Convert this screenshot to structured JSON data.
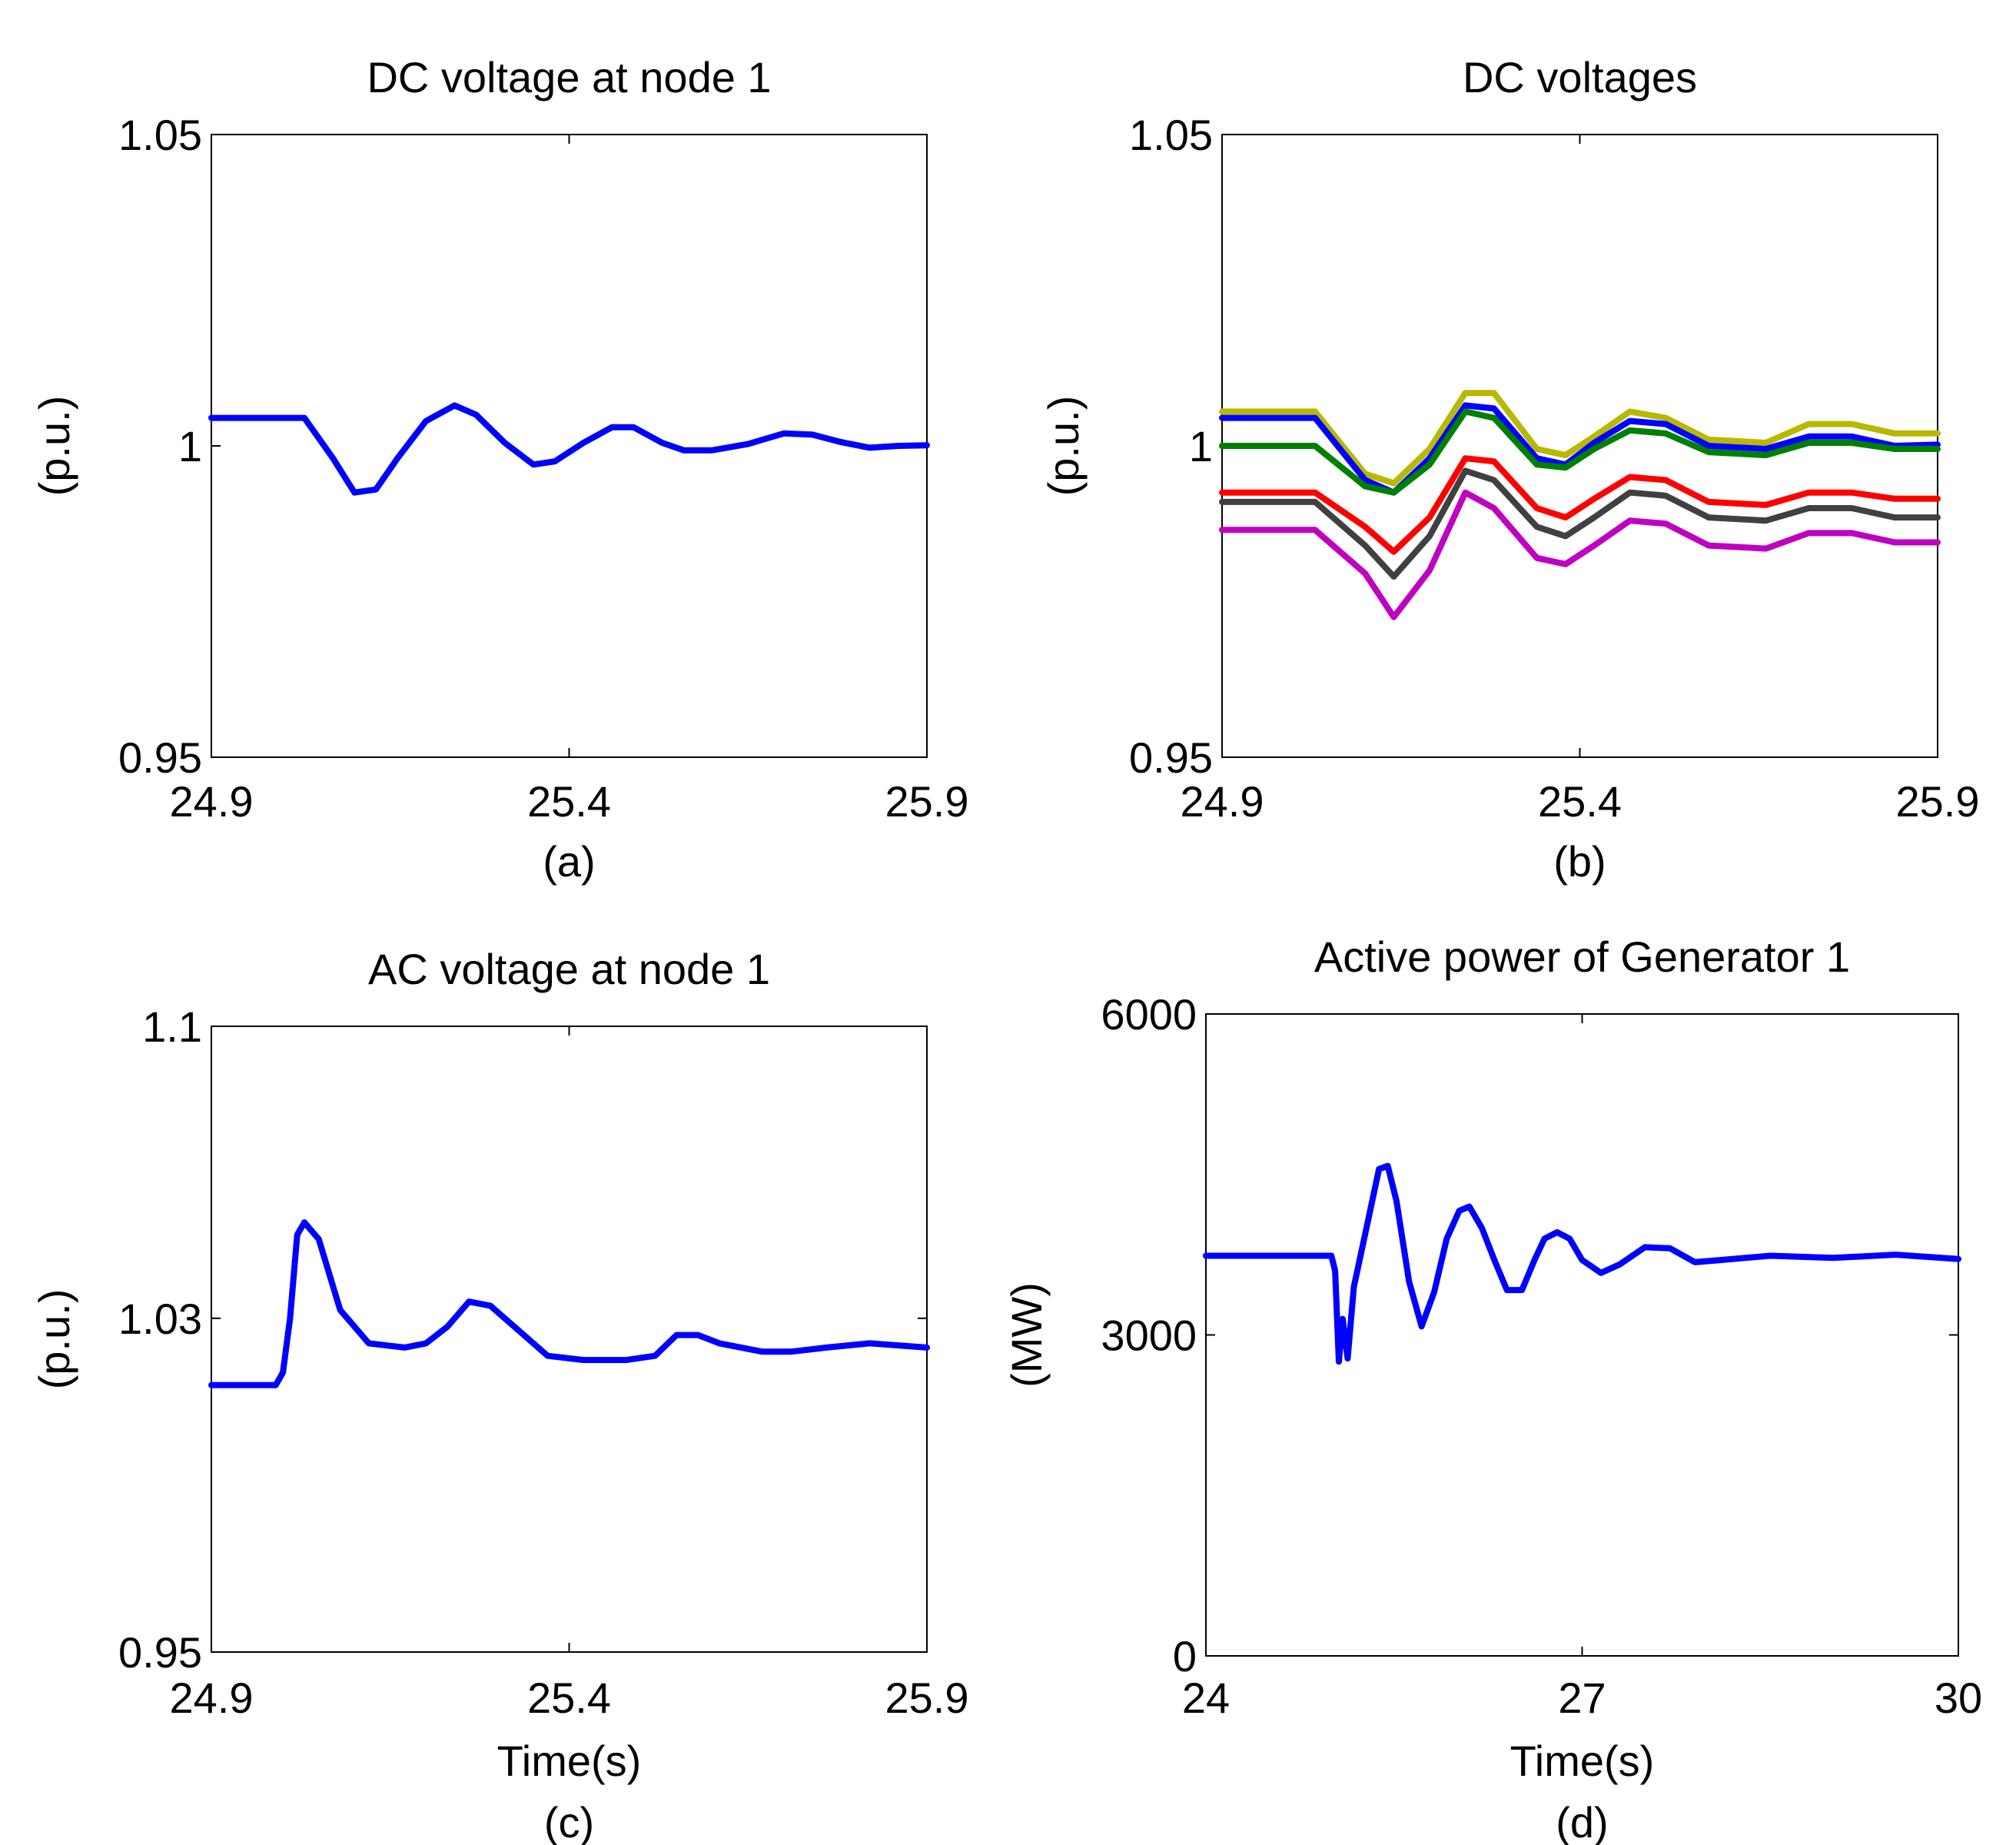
{
  "chart_data": [
    {
      "type": "line",
      "title": "DC voltage at node 1",
      "xlabel": "",
      "ylabel": "(p.u.)",
      "caption": "(a)",
      "xlim": [
        24.9,
        25.9
      ],
      "ylim": [
        0.95,
        1.05
      ],
      "xticks": [
        24.9,
        25.4,
        25.9
      ],
      "xtick_labels": [
        "24.9",
        "25.4",
        "25.9"
      ],
      "yticks": [
        0.95,
        1,
        1.05
      ],
      "ytick_labels": [
        "0.95",
        "1",
        "1.05"
      ],
      "series": [
        {
          "name": "node 1",
          "color": "#0000ff",
          "x": [
            24.9,
            25.03,
            25.07,
            25.1,
            25.13,
            25.16,
            25.2,
            25.24,
            25.27,
            25.31,
            25.35,
            25.38,
            25.42,
            25.46,
            25.49,
            25.53,
            25.56,
            25.6,
            25.65,
            25.7,
            25.74,
            25.78,
            25.82,
            25.86,
            25.9
          ],
          "y": [
            1.0045,
            1.0045,
            0.998,
            0.9925,
            0.993,
            0.998,
            1.004,
            1.0065,
            1.005,
            1.0005,
            0.997,
            0.9975,
            1.0005,
            1.003,
            1.003,
            1.0005,
            0.9993,
            0.9993,
            1.0003,
            1.002,
            1.0018,
            1.0006,
            0.9997,
            1.0,
            1.0001
          ]
        }
      ]
    },
    {
      "type": "line",
      "title": "DC voltages",
      "xlabel": "",
      "ylabel": "(p.u.)",
      "caption": "(b)",
      "xlim": [
        24.9,
        25.9
      ],
      "ylim": [
        0.95,
        1.05
      ],
      "xticks": [
        24.9,
        25.4,
        25.9
      ],
      "xtick_labels": [
        "24.9",
        "25.4",
        "25.9"
      ],
      "yticks": [
        0.95,
        1,
        1.05
      ],
      "ytick_labels": [
        "0.95",
        "1",
        "1.05"
      ],
      "series": [
        {
          "name": "yellow",
          "color": "#b8b800",
          "x": [
            24.9,
            25.03,
            25.1,
            25.14,
            25.19,
            25.24,
            25.28,
            25.34,
            25.38,
            25.42,
            25.47,
            25.52,
            25.58,
            25.66,
            25.72,
            25.78,
            25.84,
            25.9
          ],
          "y": [
            1.0055,
            1.0055,
            0.9955,
            0.994,
            0.9995,
            1.0085,
            1.0085,
            0.9995,
            0.9985,
            1.0015,
            1.0055,
            1.0045,
            1.001,
            1.0005,
            1.0035,
            1.0035,
            1.002,
            1.002
          ]
        },
        {
          "name": "blue",
          "color": "#0000ff",
          "x": [
            24.9,
            25.03,
            25.1,
            25.14,
            25.19,
            25.24,
            25.28,
            25.34,
            25.38,
            25.42,
            25.47,
            25.52,
            25.58,
            25.66,
            25.72,
            25.78,
            25.84,
            25.9
          ],
          "y": [
            1.0045,
            1.0045,
            0.9945,
            0.9925,
            0.998,
            1.0065,
            1.006,
            0.998,
            0.997,
            1.0005,
            1.004,
            1.0035,
            1.0,
            0.9995,
            1.0015,
            1.0015,
            1.0,
            1.0002
          ]
        },
        {
          "name": "green",
          "color": "#008000",
          "x": [
            24.9,
            25.03,
            25.1,
            25.14,
            25.19,
            25.24,
            25.28,
            25.34,
            25.38,
            25.42,
            25.47,
            25.52,
            25.58,
            25.66,
            25.72,
            25.78,
            25.84,
            25.9
          ],
          "y": [
            1.0,
            1.0,
            0.9935,
            0.9925,
            0.997,
            1.0055,
            1.0045,
            0.997,
            0.9965,
            0.9995,
            1.0025,
            1.002,
            0.999,
            0.9985,
            1.0005,
            1.0005,
            0.9995,
            0.9995
          ]
        },
        {
          "name": "red",
          "color": "#ff0000",
          "x": [
            24.9,
            25.03,
            25.1,
            25.14,
            25.19,
            25.24,
            25.28,
            25.34,
            25.38,
            25.42,
            25.47,
            25.52,
            25.58,
            25.66,
            25.72,
            25.78,
            25.84,
            25.9
          ],
          "y": [
            0.9925,
            0.9925,
            0.987,
            0.983,
            0.9885,
            0.998,
            0.9975,
            0.99,
            0.9885,
            0.9915,
            0.995,
            0.9945,
            0.991,
            0.9905,
            0.9925,
            0.9925,
            0.9915,
            0.9915
          ]
        },
        {
          "name": "dark gray",
          "color": "#404040",
          "x": [
            24.9,
            25.03,
            25.1,
            25.14,
            25.19,
            25.24,
            25.28,
            25.34,
            25.38,
            25.42,
            25.47,
            25.52,
            25.58,
            25.66,
            25.72,
            25.78,
            25.84,
            25.9
          ],
          "y": [
            0.991,
            0.991,
            0.984,
            0.979,
            0.9855,
            0.996,
            0.9945,
            0.987,
            0.9855,
            0.9885,
            0.9925,
            0.992,
            0.9885,
            0.988,
            0.99,
            0.99,
            0.9885,
            0.9885
          ]
        },
        {
          "name": "magenta",
          "color": "#c000c0",
          "x": [
            24.9,
            25.03,
            25.1,
            25.14,
            25.19,
            25.24,
            25.28,
            25.34,
            25.38,
            25.42,
            25.47,
            25.52,
            25.58,
            25.66,
            25.72,
            25.78,
            25.84,
            25.9
          ],
          "y": [
            0.9865,
            0.9865,
            0.9795,
            0.9725,
            0.98,
            0.9925,
            0.99,
            0.982,
            0.981,
            0.984,
            0.988,
            0.9875,
            0.984,
            0.9835,
            0.986,
            0.986,
            0.9845,
            0.9845
          ]
        }
      ]
    },
    {
      "type": "line",
      "title": "AC voltage at node 1",
      "xlabel": "Time(s)",
      "ylabel": "(p.u.)",
      "caption": "(c)",
      "xlim": [
        24.9,
        25.9
      ],
      "ylim": [
        0.95,
        1.1
      ],
      "xticks": [
        24.9,
        25.4,
        25.9
      ],
      "xtick_labels": [
        "24.9",
        "25.4",
        "25.9"
      ],
      "yticks": [
        0.95,
        1.03,
        1.1
      ],
      "ytick_labels": [
        "0.95",
        "1.03",
        "1.1"
      ],
      "series": [
        {
          "name": "node 1",
          "color": "#0000ff",
          "x": [
            24.9,
            24.99,
            25.0,
            25.01,
            25.02,
            25.03,
            25.05,
            25.08,
            25.12,
            25.17,
            25.2,
            25.23,
            25.26,
            25.29,
            25.33,
            25.37,
            25.42,
            25.48,
            25.52,
            25.55,
            25.58,
            25.61,
            25.67,
            25.71,
            25.76,
            25.82,
            25.9
          ],
          "y": [
            1.014,
            1.014,
            1.017,
            1.03,
            1.05,
            1.053,
            1.049,
            1.032,
            1.024,
            1.023,
            1.024,
            1.028,
            1.034,
            1.033,
            1.027,
            1.021,
            1.02,
            1.02,
            1.021,
            1.026,
            1.026,
            1.024,
            1.022,
            1.022,
            1.023,
            1.024,
            1.023
          ]
        }
      ]
    },
    {
      "type": "line",
      "title": "Active power of Generator 1",
      "xlabel": "Time(s)",
      "ylabel": "(MW)",
      "caption": "(d)",
      "xlim": [
        24,
        30
      ],
      "ylim": [
        0,
        6000
      ],
      "xticks": [
        24,
        27,
        30
      ],
      "xtick_labels": [
        "24",
        "27",
        "30"
      ],
      "yticks": [
        0,
        3000,
        6000
      ],
      "ytick_labels": [
        "0",
        "3000",
        "6000"
      ],
      "series": [
        {
          "name": "Generator 1",
          "color": "#0000ff",
          "x": [
            24.0,
            25.0,
            25.03,
            25.06,
            25.09,
            25.13,
            25.18,
            25.28,
            25.38,
            25.45,
            25.52,
            25.62,
            25.72,
            25.82,
            25.92,
            26.02,
            26.1,
            26.2,
            26.3,
            26.4,
            26.52,
            26.62,
            26.7,
            26.8,
            26.9,
            27.0,
            27.15,
            27.3,
            27.5,
            27.7,
            27.9,
            28.1,
            28.5,
            29.0,
            29.5,
            30.0
          ],
          "y": [
            3740,
            3740,
            3600,
            2750,
            3150,
            2780,
            3450,
            4000,
            4550,
            4580,
            4250,
            3500,
            3080,
            3400,
            3900,
            4160,
            4200,
            4000,
            3700,
            3420,
            3420,
            3700,
            3900,
            3960,
            3900,
            3700,
            3580,
            3660,
            3820,
            3810,
            3680,
            3700,
            3740,
            3720,
            3750,
            3710
          ]
        }
      ]
    }
  ]
}
